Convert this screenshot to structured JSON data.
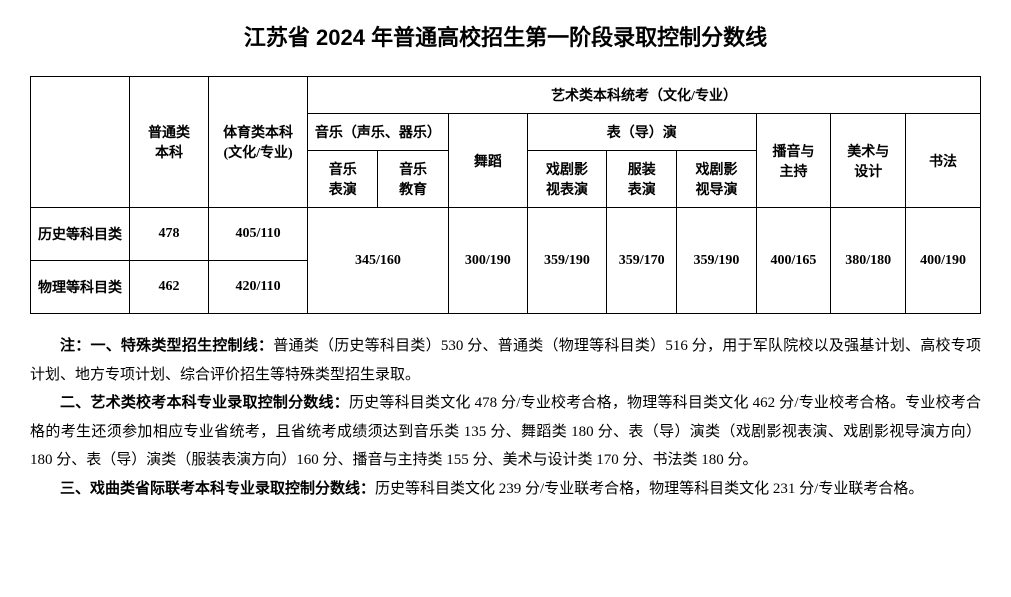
{
  "title": "江苏省 2024 年普通高校招生第一阶段录取控制分数线",
  "headers": {
    "corner": "",
    "col_general": "普通类\n本科",
    "col_pe": "体育类本科\n(文化/专业)",
    "col_art_group": "艺术类本科统考（文化/专业）",
    "col_music_group": "音乐（声乐、器乐）",
    "col_music_perf": "音乐\n表演",
    "col_music_edu": "音乐\n教育",
    "col_dance": "舞蹈",
    "col_act_group": "表（导）演",
    "col_drama_perf": "戏剧影\n视表演",
    "col_fashion_perf": "服装\n表演",
    "col_drama_dir": "戏剧影\n视导演",
    "col_broadcast": "播音与\n主持",
    "col_art_design": "美术与\n设计",
    "col_calligraphy": "书法"
  },
  "rows": {
    "history": {
      "label": "历史等科目类",
      "general": "478",
      "pe": "405/110"
    },
    "physics": {
      "label": "物理等科目类",
      "general": "462",
      "pe": "420/110"
    },
    "merged": {
      "music": "345/160",
      "dance": "300/190",
      "drama_perf": "359/190",
      "fashion_perf": "359/170",
      "drama_dir": "359/190",
      "broadcast": "400/165",
      "art_design": "380/180",
      "calligraphy": "400/190"
    }
  },
  "notes": {
    "prefix": "注：",
    "n1_label": "一、特殊类型招生控制线：",
    "n1_text": "普通类（历史等科目类）530 分、普通类（物理等科目类）516 分，用于军队院校以及强基计划、高校专项计划、地方专项计划、综合评价招生等特殊类型招生录取。",
    "n2_label": "二、艺术类校考本科专业录取控制分数线：",
    "n2_text": "历史等科目类文化 478 分/专业校考合格，物理等科目类文化 462 分/专业校考合格。专业校考合格的考生还须参加相应专业省统考，且省统考成绩须达到音乐类 135 分、舞蹈类 180 分、表（导）演类（戏剧影视表演、戏剧影视导演方向）180 分、表（导）演类（服装表演方向）160 分、播音与主持类 155 分、美术与设计类 170 分、书法类 180 分。",
    "n3_label": "三、戏曲类省际联考本科专业录取控制分数线：",
    "n3_text": "历史等科目类文化 239 分/专业联考合格，物理等科目类文化 231 分/专业联考合格。"
  },
  "style": {
    "background_color": "#ffffff",
    "text_color": "#000000",
    "border_color": "#000000",
    "title_fontsize": 22,
    "cell_fontsize": 14,
    "notes_fontsize": 15
  }
}
